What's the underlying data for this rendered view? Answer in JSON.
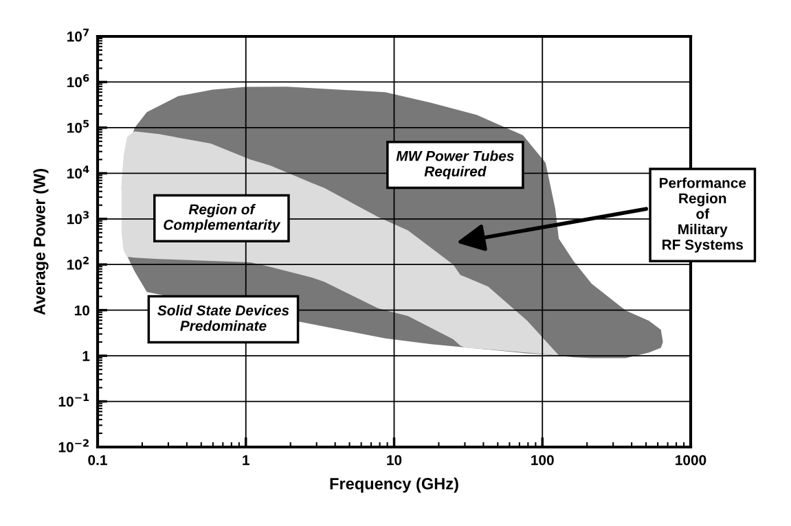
{
  "chart_data": {
    "type": "area",
    "xlabel": "Frequency (GHz)",
    "ylabel": "Average Power (W)",
    "log": "xy",
    "grid": true,
    "legend": false,
    "xlim": [
      0.1,
      1000
    ],
    "xticks": [
      0.1,
      1,
      10,
      100,
      1000
    ],
    "ylim": [
      0.01,
      10000000
    ],
    "yticks": [
      {
        "value": 0.01,
        "label": "10$^{−2}$"
      },
      {
        "value": 0.1,
        "label": "10$^{−1}$"
      },
      1,
      10,
      {
        "value": 100,
        "label": "10$^{2}$"
      },
      {
        "value": 1000,
        "label": "10$^{3}$"
      },
      {
        "value": 10000,
        "label": "10$^{4}$"
      },
      {
        "value": 100000,
        "label": "10$^{5}$"
      },
      {
        "value": 1000000,
        "label": "10$^{6}$"
      },
      {
        "value": 10000000,
        "label": "10$^{7}$"
      }
    ],
    "series": [
      {
        "color": "#787878",
        "x": [
          0.145,
          0.15,
          0.178,
          0.215,
          0.35,
          0.6,
          1,
          1.9,
          8.7,
          17.8,
          36,
          74,
          105,
          122,
          129,
          162,
          215,
          365,
          522,
          630,
          650,
          630,
          522,
          365,
          215,
          162,
          129,
          122,
          105,
          74,
          36,
          17.8,
          8.7,
          0.215,
          0.178,
          0.15
        ],
        "values": [
          5000,
          20000,
          100000,
          220000,
          490000,
          680000,
          780000,
          790000,
          600000,
          350000,
          190000,
          68000,
          17000,
          1700,
          370,
          120,
          38,
          9.8,
          5.9,
          3.7,
          2.0,
          1.5,
          1.17,
          0.89,
          0.89,
          0.93,
          1.0,
          1.02,
          1.07,
          1.15,
          1.45,
          1.8,
          2.4,
          25,
          70,
          220
        ]
      },
      {
        "color": "#dcdcdc",
        "x": [
          0.145,
          0.15,
          0.158,
          0.178,
          0.26,
          0.58,
          1.07,
          1.45,
          2.77,
          3.37,
          7.8,
          12.4,
          25,
          28,
          30,
          43,
          79,
          129,
          79,
          43,
          30,
          28,
          25,
          12.4,
          7.8,
          3.37,
          2.77,
          1.45,
          1.07,
          0.58,
          0.26,
          0.178,
          0.158,
          0.15,
          0.145
        ],
        "values": [
          6300,
          25000,
          63000,
          83000,
          72000,
          45000,
          20000,
          15000,
          6200,
          4800,
          1100,
          560,
          100,
          59,
          54,
          33,
          5.9,
          1.02,
          1.17,
          1.38,
          1.51,
          1.66,
          2.3,
          7.4,
          11,
          42,
          52,
          89,
          112,
          120,
          132,
          141,
          148,
          200,
          500
        ]
      }
    ],
    "annotations": [
      "MW Power Tubes\nRequired",
      "Region of\nComplementarity",
      "Solid State Devices\nPredominate",
      "Performance\nRegion\nof\nMilitary\nRF Systems"
    ]
  }
}
